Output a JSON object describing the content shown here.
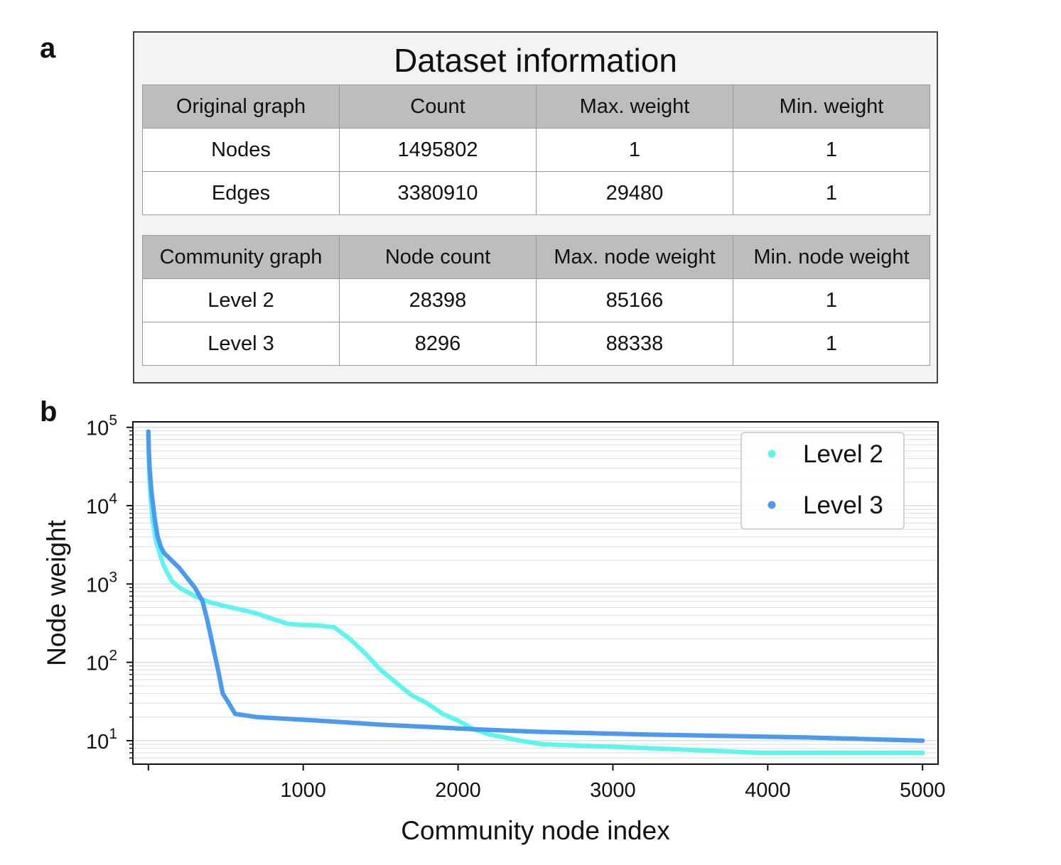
{
  "panel_labels": {
    "a": "a",
    "b": "b"
  },
  "table": {
    "title": "Dataset information",
    "original": {
      "headers": [
        "Original graph",
        "Count",
        "Max. weight",
        "Min. weight"
      ],
      "rows": [
        [
          "Nodes",
          "1495802",
          "1",
          "1"
        ],
        [
          "Edges",
          "3380910",
          "29480",
          "1"
        ]
      ]
    },
    "community": {
      "headers": [
        "Community graph",
        "Node count",
        "Max. node weight",
        "Min. node weight"
      ],
      "rows": [
        [
          "Level 2",
          "28398",
          "85166",
          "1"
        ],
        [
          "Level 3",
          "8296",
          "88338",
          "1"
        ]
      ]
    }
  },
  "chart_data": {
    "type": "scatter",
    "xlabel": "Community node index",
    "ylabel": "Node weight",
    "xlim": [
      -100,
      5100
    ],
    "ylim_exponent": [
      0.7,
      5.07
    ],
    "yscale": "log",
    "x_ticks": [
      1000,
      2000,
      3000,
      4000,
      5000
    ],
    "y_tick_exponents": [
      1,
      2,
      3,
      4,
      5
    ],
    "y_tick_base": "10",
    "grid": "horizontal-minor",
    "legend_position": "top-right",
    "series": [
      {
        "name": "Level 2",
        "color": "#5ef5ef",
        "points": [
          [
            0,
            85166
          ],
          [
            3,
            40000
          ],
          [
            8,
            20000
          ],
          [
            15,
            12000
          ],
          [
            30,
            6000
          ],
          [
            50,
            3500
          ],
          [
            80,
            2200
          ],
          [
            100,
            1700
          ],
          [
            150,
            1100
          ],
          [
            200,
            900
          ],
          [
            300,
            700
          ],
          [
            400,
            580
          ],
          [
            500,
            520
          ],
          [
            600,
            470
          ],
          [
            700,
            420
          ],
          [
            800,
            360
          ],
          [
            900,
            310
          ],
          [
            1000,
            300
          ],
          [
            1100,
            295
          ],
          [
            1200,
            280
          ],
          [
            1300,
            200
          ],
          [
            1400,
            130
          ],
          [
            1500,
            80
          ],
          [
            1600,
            55
          ],
          [
            1700,
            38
          ],
          [
            1800,
            30
          ],
          [
            1900,
            22
          ],
          [
            2000,
            18
          ],
          [
            2100,
            14
          ],
          [
            2200,
            12
          ],
          [
            2300,
            11
          ],
          [
            2400,
            10
          ],
          [
            2550,
            9
          ],
          [
            3250,
            8
          ],
          [
            3950,
            7
          ],
          [
            5000,
            7
          ]
        ]
      },
      {
        "name": "Level 3",
        "color": "#4a9af0",
        "points": [
          [
            0,
            88338
          ],
          [
            3,
            50000
          ],
          [
            8,
            30000
          ],
          [
            20,
            15000
          ],
          [
            40,
            7000
          ],
          [
            60,
            4000
          ],
          [
            80,
            3000
          ],
          [
            100,
            2500
          ],
          [
            150,
            2000
          ],
          [
            200,
            1600
          ],
          [
            250,
            1200
          ],
          [
            300,
            900
          ],
          [
            350,
            600
          ],
          [
            380,
            350
          ],
          [
            420,
            150
          ],
          [
            450,
            80
          ],
          [
            480,
            40
          ],
          [
            520,
            30
          ],
          [
            560,
            22
          ],
          [
            700,
            20
          ],
          [
            900,
            19
          ],
          [
            1100,
            18
          ],
          [
            1300,
            17
          ],
          [
            1500,
            16
          ],
          [
            1800,
            15
          ],
          [
            2100,
            14
          ],
          [
            2500,
            13
          ],
          [
            3200,
            12
          ],
          [
            4250,
            11
          ],
          [
            5000,
            10
          ]
        ]
      }
    ]
  }
}
